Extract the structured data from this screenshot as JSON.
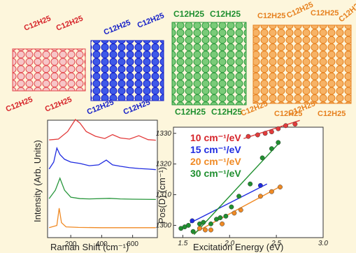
{
  "ribbons": [
    {
      "name": "red-ribbon",
      "color": "#e3474d",
      "fill": "#f2a9ab",
      "labels": [
        "C12H25",
        "C12H25",
        "C12H25",
        "C12H25"
      ]
    },
    {
      "name": "blue-ribbon",
      "color": "#1f2be0",
      "fill": "#3d56e6",
      "labels": [
        "C12H25",
        "C12H25",
        "C12H25",
        "C12H25"
      ]
    },
    {
      "name": "green-ribbon",
      "color": "#27963b",
      "fill": "#5fbf63",
      "labels": [
        "C12H25",
        "C12H25",
        "C12H25",
        "C12H25"
      ]
    },
    {
      "name": "orange-ribbon",
      "color": "#e6801e",
      "fill": "#f3a64a",
      "labels": [
        "C12H25",
        "C12H25",
        "C12H25",
        "C12H25",
        "C12H25",
        "C12H25",
        "C12H25",
        "C12H25"
      ]
    }
  ],
  "chart_data": [
    {
      "type": "line",
      "xlabel": "Raman Shift (cm⁻¹)",
      "ylabel": "Intensity (Arb. Units)",
      "xlim": [
        50,
        760
      ],
      "xticks": [
        200,
        400,
        600
      ],
      "series": [
        {
          "color": "#e33b3b",
          "offset": 0.82,
          "points": [
            [
              60,
              0.05
            ],
            [
              120,
              0.08
            ],
            [
              180,
              0.35
            ],
            [
              230,
              0.78
            ],
            [
              260,
              0.65
            ],
            [
              300,
              0.35
            ],
            [
              360,
              0.18
            ],
            [
              420,
              0.1
            ],
            [
              470,
              0.24
            ],
            [
              520,
              0.12
            ],
            [
              580,
              0.08
            ],
            [
              640,
              0.2
            ],
            [
              700,
              0.06
            ],
            [
              750,
              0.04
            ]
          ]
        },
        {
          "color": "#1f2be0",
          "offset": 0.56,
          "points": [
            [
              60,
              0.1
            ],
            [
              90,
              0.35
            ],
            [
              110,
              0.85
            ],
            [
              130,
              0.62
            ],
            [
              160,
              0.45
            ],
            [
              200,
              0.35
            ],
            [
              260,
              0.3
            ],
            [
              320,
              0.22
            ],
            [
              380,
              0.25
            ],
            [
              430,
              0.42
            ],
            [
              470,
              0.25
            ],
            [
              520,
              0.2
            ],
            [
              580,
              0.15
            ],
            [
              640,
              0.12
            ],
            [
              700,
              0.1
            ],
            [
              750,
              0.08
            ]
          ]
        },
        {
          "color": "#27963b",
          "offset": 0.32,
          "points": [
            [
              60,
              0.05
            ],
            [
              100,
              0.35
            ],
            [
              130,
              0.78
            ],
            [
              160,
              0.35
            ],
            [
              200,
              0.1
            ],
            [
              260,
              0.05
            ],
            [
              320,
              0.04
            ],
            [
              450,
              0.06
            ],
            [
              520,
              0.04
            ],
            [
              600,
              0.03
            ],
            [
              750,
              0.02
            ]
          ]
        },
        {
          "color": "#f08a24",
          "offset": 0.08,
          "points": [
            [
              60,
              0.02
            ],
            [
              110,
              0.1
            ],
            [
              125,
              0.72
            ],
            [
              140,
              0.2
            ],
            [
              170,
              0.05
            ],
            [
              250,
              0.03
            ],
            [
              400,
              0.02
            ],
            [
              600,
              0.02
            ],
            [
              750,
              0.02
            ]
          ]
        }
      ]
    },
    {
      "type": "scatter",
      "xlabel": "Excitation Energy (eV)",
      "ylabel": "Pos(D) (cm⁻¹)",
      "xlim": [
        1.4,
        3.0
      ],
      "ylim": [
        1296,
        1332
      ],
      "xticks": [
        1.5,
        2.0,
        2.5,
        3.0
      ],
      "xtick_labels": [
        "1.5",
        "2.0",
        "2.5",
        "3.0"
      ],
      "yticks": [
        1300,
        1310,
        1320,
        1330
      ],
      "legend": [
        {
          "text": "10 cm⁻¹/eV",
          "color": "#d6242a"
        },
        {
          "text": "15 cm⁻¹/eV",
          "color": "#1f2be0"
        },
        {
          "text": "20 cm⁻¹/eV",
          "color": "#f08a24"
        },
        {
          "text": "30 cm⁻¹/eV",
          "color": "#1f8f2f"
        }
      ],
      "series": [
        {
          "color": "#e33b3b",
          "points": [
            [
              2.2,
              1329
            ],
            [
              2.3,
              1329.5
            ],
            [
              2.38,
              1330
            ],
            [
              2.45,
              1330.5
            ],
            [
              2.52,
              1331.5
            ],
            [
              2.6,
              1332.5
            ],
            [
              2.7,
              1333
            ]
          ],
          "fit": [
            [
              2.15,
              1328.3
            ],
            [
              2.75,
              1334.2
            ]
          ]
        },
        {
          "color": "#1f2be0",
          "points": [
            [
              1.6,
              1301.5
            ],
            [
              2.33,
              1313
            ]
          ],
          "fit": [
            [
              1.58,
              1300.8
            ],
            [
              2.4,
              1313.5
            ]
          ]
        },
        {
          "color": "#f08a24",
          "points": [
            [
              1.68,
              1299
            ],
            [
              1.74,
              1298.5
            ],
            [
              1.8,
              1298.5
            ],
            [
              1.92,
              1300.5
            ],
            [
              2.05,
              1304
            ],
            [
              2.12,
              1305
            ],
            [
              2.33,
              1309.5
            ],
            [
              2.45,
              1311
            ],
            [
              2.54,
              1312.5
            ]
          ],
          "fit": [
            [
              1.6,
              1297.2
            ],
            [
              2.55,
              1312.8
            ]
          ]
        },
        {
          "color": "#1f8f2f",
          "points": [
            [
              1.48,
              1299
            ],
            [
              1.52,
              1299.5
            ],
            [
              1.56,
              1300
            ],
            [
              1.61,
              1298
            ],
            [
              1.68,
              1300.5
            ],
            [
              1.72,
              1301
            ],
            [
              1.8,
              1300.5
            ],
            [
              1.86,
              1302
            ],
            [
              1.9,
              1302.5
            ],
            [
              1.96,
              1303
            ],
            [
              2.02,
              1306
            ],
            [
              2.1,
              1309.5
            ],
            [
              2.22,
              1313.5
            ],
            [
              2.35,
              1322
            ],
            [
              2.45,
              1325
            ],
            [
              2.52,
              1327
            ]
          ],
          "fit": [
            [
              1.62,
              1297
            ],
            [
              2.54,
              1327.2
            ]
          ]
        }
      ]
    }
  ]
}
